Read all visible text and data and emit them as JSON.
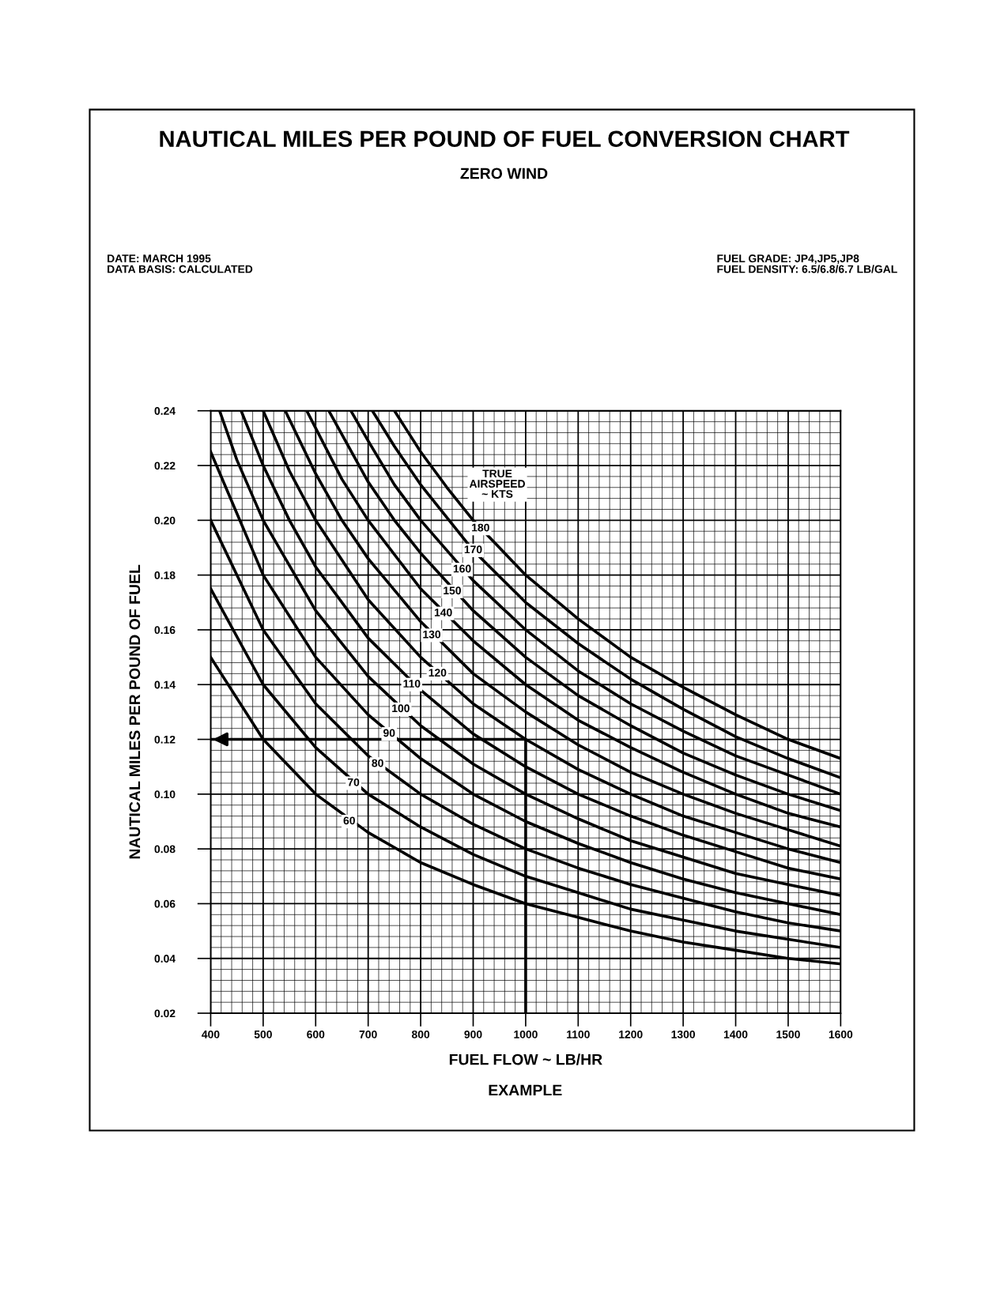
{
  "chart_data": {
    "type": "line",
    "title": "NAUTICAL MILES PER POUND OF FUEL CONVERSION CHART",
    "subtitle": "ZERO WIND",
    "xlabel": "FUEL FLOW ~ LB/HR",
    "ylabel": "NAUTICAL MILES PER POUND OF FUEL",
    "xlim": [
      400,
      1600
    ],
    "ylim": [
      0.02,
      0.24
    ],
    "xticks": [
      400,
      500,
      600,
      700,
      800,
      900,
      1000,
      1100,
      1200,
      1300,
      1400,
      1500,
      1600
    ],
    "yticks": [
      {
        "value": 0.02,
        "label": "0.02"
      },
      {
        "value": 0.04,
        "label": "0.04"
      },
      {
        "value": 0.06,
        "label": "0.06"
      },
      {
        "value": 0.08,
        "label": "0.08"
      },
      {
        "value": 0.1,
        "label": "0.10"
      },
      {
        "value": 0.12,
        "label": "0.12"
      },
      {
        "value": 0.14,
        "label": "0.14"
      },
      {
        "value": 0.16,
        "label": "0.16"
      },
      {
        "value": 0.18,
        "label": "0.18"
      },
      {
        "value": 0.2,
        "label": "0.20"
      },
      {
        "value": 0.22,
        "label": "0.22"
      },
      {
        "value": 0.24,
        "label": "0.24"
      }
    ],
    "grid": true,
    "marker": "none",
    "line_style": "solid",
    "series": [
      {
        "color": "#000000",
        "x": [
          400,
          500,
          600,
          700,
          800,
          900,
          1000,
          1100,
          1200,
          1300,
          1400,
          1500,
          1600
        ],
        "values": [
          0.15,
          0.12,
          0.1,
          0.086,
          0.075,
          0.067,
          0.06,
          0.055,
          0.05,
          0.046,
          0.043,
          0.04,
          0.038
        ]
      },
      {
        "color": "#000000",
        "x": [
          400,
          500,
          600,
          700,
          800,
          900,
          1000,
          1100,
          1200,
          1300,
          1400,
          1500,
          1600
        ],
        "values": [
          0.175,
          0.14,
          0.117,
          0.1,
          0.088,
          0.078,
          0.07,
          0.064,
          0.058,
          0.054,
          0.05,
          0.047,
          0.044
        ]
      },
      {
        "color": "#000000",
        "x": [
          400,
          500,
          600,
          700,
          800,
          900,
          1000,
          1100,
          1200,
          1300,
          1400,
          1500,
          1600
        ],
        "values": [
          0.2,
          0.16,
          0.133,
          0.114,
          0.1,
          0.089,
          0.08,
          0.073,
          0.067,
          0.062,
          0.057,
          0.053,
          0.05
        ]
      },
      {
        "color": "#000000",
        "x": [
          400,
          500,
          600,
          700,
          800,
          900,
          1000,
          1100,
          1200,
          1300,
          1400,
          1500,
          1600
        ],
        "values": [
          0.225,
          0.18,
          0.15,
          0.129,
          0.113,
          0.1,
          0.09,
          0.082,
          0.075,
          0.069,
          0.064,
          0.06,
          0.056
        ]
      },
      {
        "color": "#000000",
        "x": [
          417,
          450,
          500,
          600,
          700,
          800,
          900,
          1000,
          1100,
          1200,
          1300,
          1400,
          1500,
          1600
        ],
        "values": [
          0.24,
          0.222,
          0.2,
          0.167,
          0.143,
          0.125,
          0.111,
          0.1,
          0.091,
          0.083,
          0.077,
          0.071,
          0.067,
          0.063
        ]
      },
      {
        "color": "#000000",
        "x": [
          458,
          500,
          550,
          600,
          700,
          800,
          900,
          1000,
          1100,
          1200,
          1300,
          1400,
          1500,
          1600
        ],
        "values": [
          0.24,
          0.22,
          0.2,
          0.183,
          0.157,
          0.138,
          0.122,
          0.11,
          0.1,
          0.092,
          0.085,
          0.079,
          0.073,
          0.069
        ]
      },
      {
        "color": "#000000",
        "x": [
          500,
          550,
          600,
          700,
          800,
          900,
          1000,
          1100,
          1200,
          1300,
          1400,
          1500,
          1600
        ],
        "values": [
          0.24,
          0.218,
          0.2,
          0.171,
          0.15,
          0.133,
          0.12,
          0.109,
          0.1,
          0.092,
          0.086,
          0.08,
          0.075
        ]
      },
      {
        "color": "#000000",
        "x": [
          542,
          600,
          650,
          700,
          800,
          900,
          1000,
          1100,
          1200,
          1300,
          1400,
          1500,
          1600
        ],
        "values": [
          0.24,
          0.217,
          0.2,
          0.186,
          0.163,
          0.144,
          0.13,
          0.118,
          0.108,
          0.1,
          0.093,
          0.087,
          0.081
        ]
      },
      {
        "color": "#000000",
        "x": [
          583,
          650,
          700,
          800,
          900,
          1000,
          1100,
          1200,
          1300,
          1400,
          1500,
          1600
        ],
        "values": [
          0.24,
          0.215,
          0.2,
          0.175,
          0.156,
          0.14,
          0.127,
          0.117,
          0.108,
          0.1,
          0.093,
          0.088
        ]
      },
      {
        "color": "#000000",
        "x": [
          625,
          700,
          750,
          800,
          900,
          1000,
          1100,
          1200,
          1300,
          1400,
          1500,
          1600
        ],
        "values": [
          0.24,
          0.214,
          0.2,
          0.188,
          0.167,
          0.15,
          0.136,
          0.125,
          0.115,
          0.107,
          0.1,
          0.094
        ]
      },
      {
        "color": "#000000",
        "x": [
          667,
          700,
          750,
          800,
          900,
          1000,
          1100,
          1200,
          1300,
          1400,
          1500,
          1600
        ],
        "values": [
          0.24,
          0.229,
          0.213,
          0.2,
          0.178,
          0.16,
          0.145,
          0.133,
          0.123,
          0.114,
          0.107,
          0.1
        ]
      },
      {
        "color": "#000000",
        "x": [
          708,
          750,
          800,
          900,
          1000,
          1100,
          1200,
          1300,
          1400,
          1500,
          1600
        ],
        "values": [
          0.24,
          0.227,
          0.213,
          0.189,
          0.17,
          0.155,
          0.142,
          0.131,
          0.121,
          0.113,
          0.106
        ]
      },
      {
        "color": "#000000",
        "x": [
          750,
          800,
          850,
          900,
          1000,
          1100,
          1200,
          1300,
          1400,
          1500,
          1600
        ],
        "values": [
          0.24,
          0.225,
          0.212,
          0.2,
          0.18,
          0.164,
          0.15,
          0.139,
          0.129,
          0.12,
          0.113
        ]
      },
      {
        "color": "#000000",
        "x": [
          1000,
          1000,
          400
        ],
        "values": [
          0.02,
          0.12,
          0.12
        ]
      }
    ],
    "annotations": [
      "DATE: MARCH 1995\nDATA BASIS: CALCULATED",
      "FUEL GRADE: JP4,JP5,JP8\nFUEL DENSITY: 6.5/6.8/6.7 LB/GAL",
      "EXAMPLE",
      "TRUE\nAIRSPEED\n~ KTS",
      {
        "text": "60",
        "x": 664,
        "y": 0.09
      },
      {
        "text": "70",
        "x": 672,
        "y": 0.104
      },
      {
        "text": "80",
        "x": 718,
        "y": 0.111
      },
      {
        "text": "90",
        "x": 740,
        "y": 0.122
      },
      {
        "text": "100",
        "x": 762,
        "y": 0.131
      },
      {
        "text": "110",
        "x": 783,
        "y": 0.14
      },
      {
        "text": "120",
        "x": 832,
        "y": 0.144
      },
      {
        "text": "130",
        "x": 821,
        "y": 0.158
      },
      {
        "text": "140",
        "x": 843,
        "y": 0.166
      },
      {
        "text": "150",
        "x": 860,
        "y": 0.174
      },
      {
        "text": "160",
        "x": 879,
        "y": 0.182
      },
      {
        "text": "170",
        "x": 900,
        "y": 0.189
      },
      {
        "text": "180",
        "x": 914,
        "y": 0.197
      }
    ]
  }
}
